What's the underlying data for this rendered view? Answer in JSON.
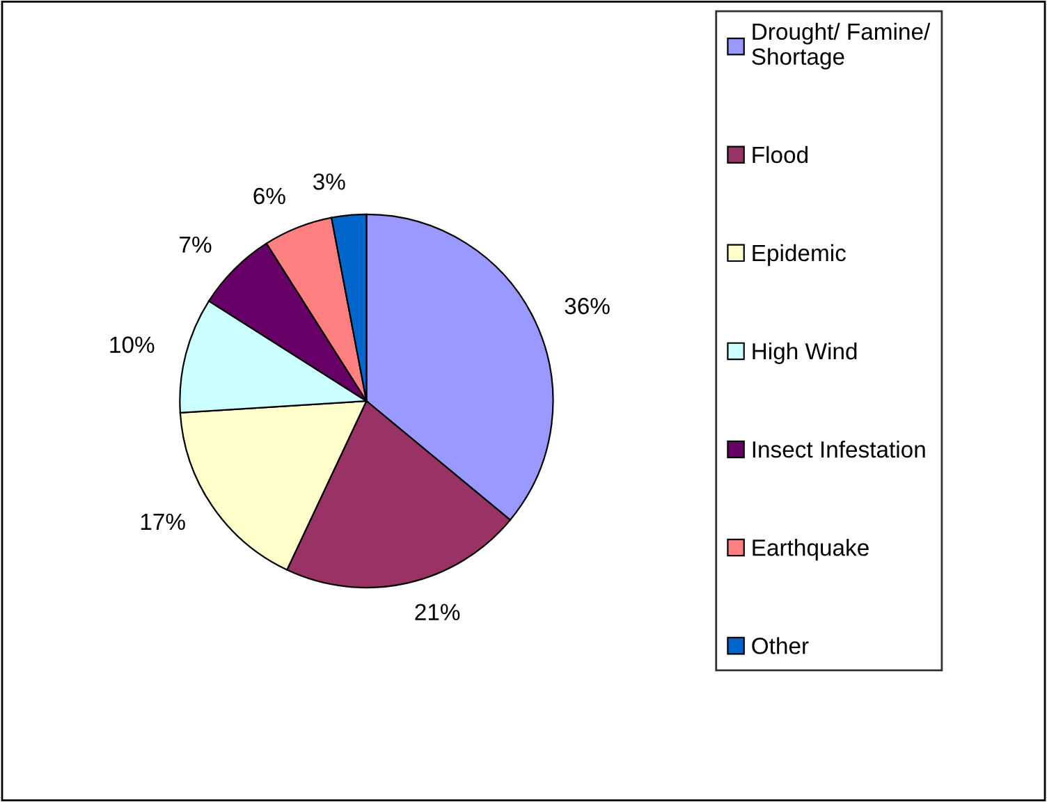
{
  "chart_data": {
    "type": "pie",
    "categories": [
      "Drought/ Famine/\nShortage",
      "Flood",
      "Epidemic",
      "High Wind",
      "Insect Infestation",
      "Earthquake",
      "Other"
    ],
    "values": [
      36,
      21,
      17,
      10,
      7,
      6,
      3
    ],
    "colors": [
      "#9999ff",
      "#993366",
      "#ffffcc",
      "#ccffff",
      "#660066",
      "#ff8080",
      "#0066cc"
    ],
    "value_labels": [
      "36%",
      "21%",
      "17%",
      "10%",
      "7%",
      "6%",
      "3%"
    ],
    "legend": "right"
  }
}
